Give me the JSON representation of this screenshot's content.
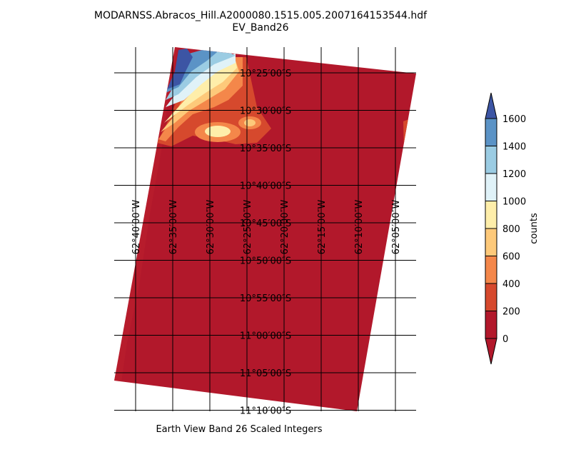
{
  "title": {
    "line1": "MODARNSS.Abracos_Hill.A2000080.1515.005.2007164153544.hdf",
    "line2": "EV_Band26"
  },
  "caption": "Earth View Band 26 Scaled Integers",
  "map": {
    "lat_labels": [
      "10°25′00″S",
      "10°30′00″S",
      "10°35′00″S",
      "10°40′00″S",
      "10°45′00″S",
      "10°50′00″S",
      "10°55′00″S",
      "11°00′00″S",
      "11°05′00″S",
      "11°10′00″S"
    ],
    "lon_labels": [
      "62°40′00″W",
      "62°35′00″W",
      "62°30′00″W",
      "62°25′00″W",
      "62°20′00″W",
      "62°15′00″W",
      "62°10′00″W",
      "62°05′00″W"
    ],
    "grid": true
  },
  "colorbar": {
    "label": "counts",
    "ticks": [
      "0",
      "200",
      "400",
      "600",
      "800",
      "1000",
      "1200",
      "1400",
      "1600"
    ],
    "colors": [
      "#b2182b",
      "#d6492d",
      "#f4874a",
      "#fdc97a",
      "#feeeaa",
      "#e0f2f8",
      "#9bcce3",
      "#5b93c6",
      "#3c55a4"
    ],
    "extend": "both"
  }
}
